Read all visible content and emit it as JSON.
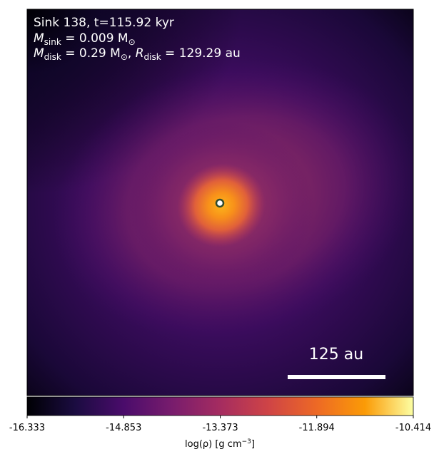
{
  "chart_data": {
    "type": "density_map",
    "annotations": {
      "title": "Sink 138, t=115.92 kyr",
      "sink_mass": {
        "symbol": "M",
        "subscript": "sink",
        "text": " = 0.009 M",
        "unit_subscript": "⊙"
      },
      "disk": {
        "symbol": "M",
        "subscript": "disk",
        "text": " = 0.29 M",
        "unit_subscript": "⊙",
        "sep": ", ",
        "symbol2": "R",
        "subscript2": "disk",
        "text2": " = 129.29 au"
      }
    },
    "scale_bar": "125 au",
    "colorbar": {
      "label": "log(ρ) [g cm",
      "label_sup": "−3",
      "label_end": "]",
      "xlim": [
        -16.333,
        -10.414
      ],
      "xticks": [
        -16.333,
        -14.853,
        -13.373,
        -11.894,
        -10.414
      ],
      "colors": [
        "#000004",
        "#1b0c41",
        "#4a0c6b",
        "#781c6d",
        "#a52c60",
        "#cf4446",
        "#ed6925",
        "#fb9b06",
        "#fcffa4"
      ]
    }
  }
}
